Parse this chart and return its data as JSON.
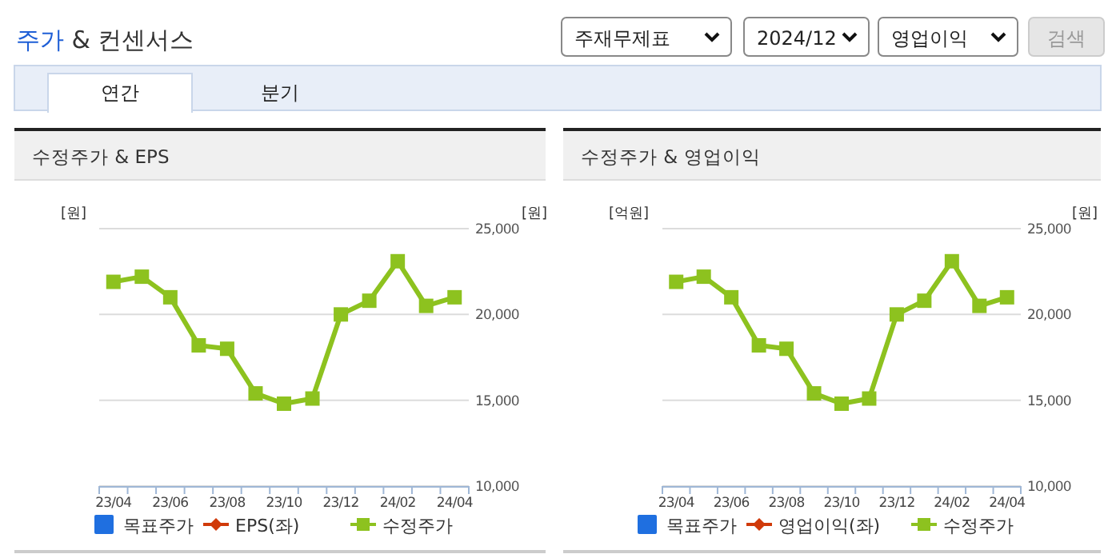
{
  "chart_data": [
    {
      "type": "other",
      "title": "주가 & 컨센서스",
      "annotations": [
        "주재무제표",
        "2024/12",
        "영업이익",
        "검색",
        "연간",
        "분기"
      ]
    },
    {
      "type": "line",
      "title": "수정주가 & EPS",
      "ylabel": "[원]",
      "y2label": "[원]",
      "categories": [
        "23/04",
        null,
        "23/06",
        null,
        "23/08",
        null,
        "23/10",
        null,
        "23/12",
        null,
        "24/02",
        null,
        "24/04"
      ],
      "y2lim": [
        10000,
        25000
      ],
      "y2ticks": [
        {
          "value": 10000,
          "label": "10,000"
        },
        {
          "value": 15000,
          "label": "15,000"
        },
        {
          "value": 20000,
          "label": "20,000"
        },
        {
          "value": 25000,
          "label": "25,000"
        }
      ],
      "grid": "y",
      "legend": "bottom",
      "series": [
        {
          "name": "목표주가",
          "type": "bar",
          "color": "#1f6fe0",
          "values": [
            null,
            null,
            null,
            null,
            null,
            null,
            null,
            null,
            null,
            null,
            null,
            null,
            null
          ]
        },
        {
          "name": "EPS(좌)",
          "type": "line",
          "color": "#d03a0a",
          "marker": "diamond",
          "values": [
            null,
            null,
            null,
            null,
            null,
            null,
            null,
            null,
            null,
            null,
            null,
            null,
            null
          ]
        },
        {
          "name": "수정주가",
          "type": "line",
          "color": "#8dc21f",
          "marker": "square",
          "axis": "y2",
          "values": [
            21900,
            22200,
            21000,
            18200,
            18000,
            15400,
            14800,
            15100,
            20000,
            20800,
            23100,
            20500,
            21000
          ]
        }
      ]
    },
    {
      "type": "line",
      "title": "수정주가 & 영업이익",
      "ylabel": "[억원]",
      "y2label": "[원]",
      "categories": [
        "23/04",
        null,
        "23/06",
        null,
        "23/08",
        null,
        "23/10",
        null,
        "23/12",
        null,
        "24/02",
        null,
        "24/04"
      ],
      "y2lim": [
        10000,
        25000
      ],
      "y2ticks": [
        {
          "value": 10000,
          "label": "10,000"
        },
        {
          "value": 15000,
          "label": "15,000"
        },
        {
          "value": 20000,
          "label": "20,000"
        },
        {
          "value": 25000,
          "label": "25,000"
        }
      ],
      "grid": "y",
      "legend": "bottom",
      "series": [
        {
          "name": "목표주가",
          "type": "bar",
          "color": "#1f6fe0",
          "values": [
            null,
            null,
            null,
            null,
            null,
            null,
            null,
            null,
            null,
            null,
            null,
            null,
            null
          ]
        },
        {
          "name": "영업이익(좌)",
          "type": "line",
          "color": "#d03a0a",
          "marker": "diamond",
          "values": [
            null,
            null,
            null,
            null,
            null,
            null,
            null,
            null,
            null,
            null,
            null,
            null,
            null
          ]
        },
        {
          "name": "수정주가",
          "type": "line",
          "color": "#8dc21f",
          "marker": "square",
          "axis": "y2",
          "values": [
            21900,
            22200,
            21000,
            18200,
            18000,
            15400,
            14800,
            15100,
            20000,
            20800,
            23100,
            20500,
            21000
          ]
        }
      ]
    }
  ]
}
